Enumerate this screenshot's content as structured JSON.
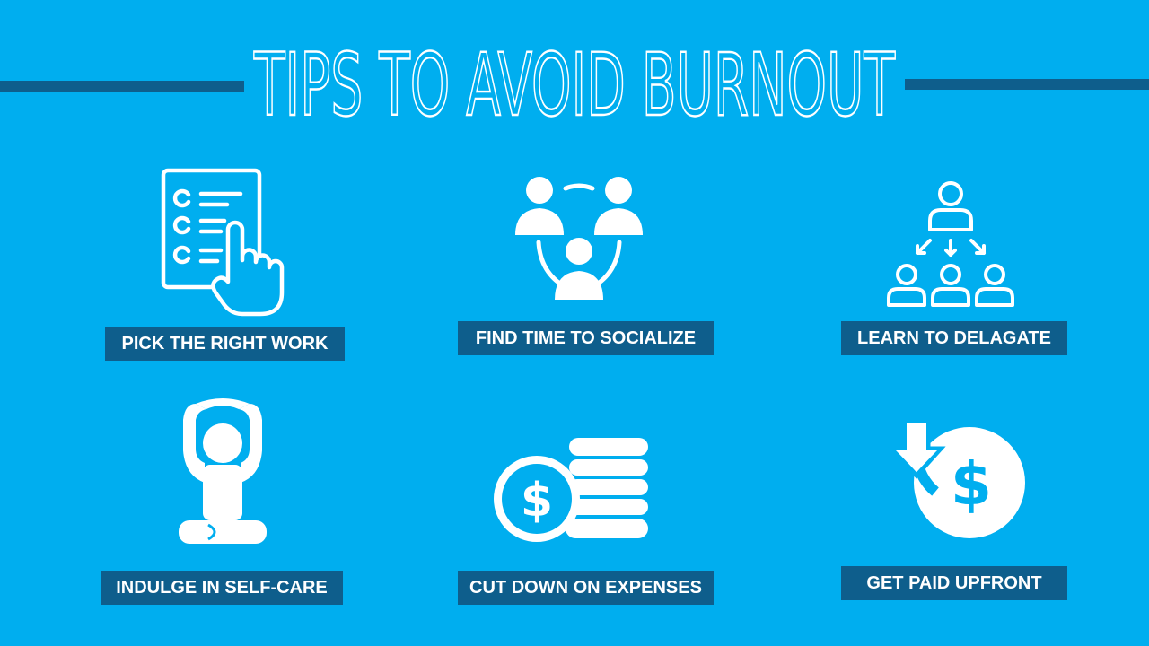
{
  "title": "TIPS TO AVOID BURNOUT",
  "colors": {
    "background": "#00aeef",
    "accent": "#0e5e8c",
    "icon": "#ffffff"
  },
  "tips": [
    {
      "label": "PICK THE RIGHT WORK",
      "icon": "checklist-hand-icon"
    },
    {
      "label": "FIND TIME TO SOCIALIZE",
      "icon": "people-circle-icon"
    },
    {
      "label": "LEARN TO DELAGATE",
      "icon": "delegate-hierarchy-icon"
    },
    {
      "label": "INDULGE IN SELF-CARE",
      "icon": "yoga-meditation-icon"
    },
    {
      "label": "CUT DOWN ON EXPENSES",
      "icon": "coin-stack-icon"
    },
    {
      "label": "GET PAID UPFRONT",
      "icon": "dollar-arrow-icon"
    }
  ]
}
